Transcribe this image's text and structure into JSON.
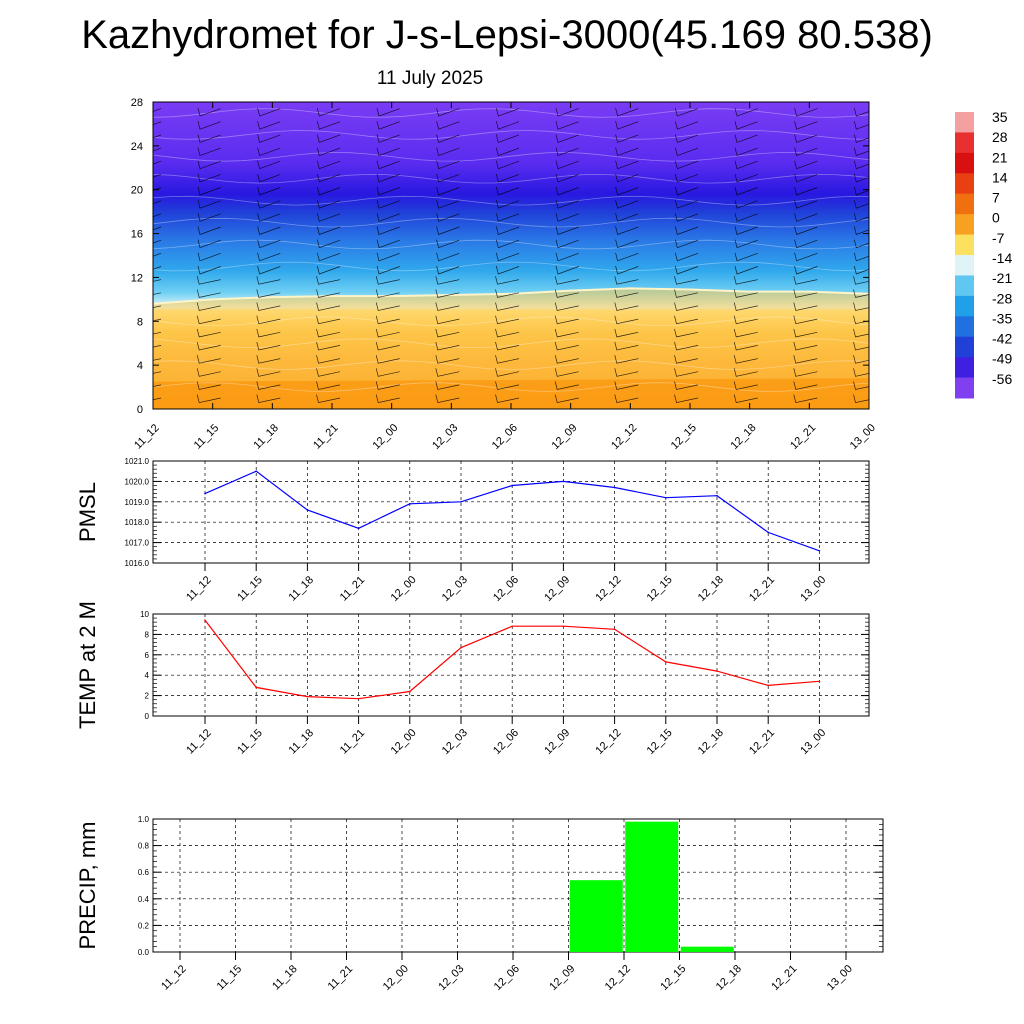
{
  "page": {
    "title": "Kazhydromet for J-s-Lepsi-3000(45.169 80.538)",
    "subtitle": "11 July 2025"
  },
  "chart_data": [
    {
      "type": "heatmap",
      "name": "time-height-section",
      "x_labels": [
        "11_12",
        "11_15",
        "11_18",
        "11_21",
        "12_00",
        "12_03",
        "12_06",
        "12_09",
        "12_12",
        "12_15",
        "12_18",
        "12_21",
        "13_00"
      ],
      "y_ticks": [
        0,
        4,
        8,
        12,
        16,
        20,
        24,
        28
      ],
      "ylim": [
        0,
        28
      ],
      "freezing_level": [
        9.6,
        10.0,
        10.2,
        10.3,
        10.3,
        10.4,
        10.5,
        10.8,
        11.0,
        10.9,
        10.7,
        10.7,
        10.5
      ],
      "wind_barbs": true,
      "grid": false,
      "colorbar": {
        "labels": [
          "35",
          "28",
          "21",
          "14",
          "7",
          "0",
          "-7",
          "-14",
          "-21",
          "-28",
          "-35",
          "-42",
          "-49",
          "-56"
        ],
        "values": [
          35,
          28,
          21,
          14,
          7,
          0,
          -7,
          -14,
          -21,
          -28,
          -35,
          -42,
          -49,
          -56
        ],
        "colors": [
          "#f4a0a0",
          "#e83030",
          "#d81010",
          "#e84010",
          "#f07010",
          "#f8a020",
          "#fce060",
          "#e0f4f8",
          "#60c8f0",
          "#20a0e8",
          "#2070e0",
          "#2040d8",
          "#4020e0",
          "#8040f0"
        ]
      }
    },
    {
      "type": "line",
      "name": "pmsl",
      "ylabel": "PMSL",
      "categories": [
        "11_12",
        "11_15",
        "11_18",
        "11_21",
        "12_00",
        "12_03",
        "12_06",
        "12_09",
        "12_12",
        "12_15",
        "12_18",
        "12_21",
        "13_00"
      ],
      "values": [
        1019.4,
        1020.5,
        1018.6,
        1017.7,
        1018.9,
        1019.0,
        1019.8,
        1020.0,
        1019.7,
        1019.2,
        1019.3,
        1017.5,
        1016.6
      ],
      "y_ticks": [
        "1016.0",
        "1017.0",
        "1018.0",
        "1019.0",
        "1020.0",
        "1021.0"
      ],
      "ylim": [
        1016,
        1021
      ],
      "color": "#0000ff",
      "grid": true
    },
    {
      "type": "line",
      "name": "temp2m",
      "ylabel": "TEMP at 2 M",
      "categories": [
        "11_12",
        "11_15",
        "11_18",
        "11_21",
        "12_00",
        "12_03",
        "12_06",
        "12_09",
        "12_12",
        "12_15",
        "12_18",
        "12_21",
        "13_00"
      ],
      "values": [
        9.4,
        2.8,
        1.9,
        1.7,
        2.4,
        6.7,
        8.8,
        8.8,
        8.5,
        5.3,
        4.4,
        3.0,
        3.4
      ],
      "y_ticks": [
        "0",
        "2",
        "4",
        "6",
        "8",
        "10"
      ],
      "ylim": [
        0,
        10
      ],
      "color": "#ff0000",
      "grid": true
    },
    {
      "type": "bar",
      "name": "precip",
      "ylabel": "PRECIP, mm",
      "categories": [
        "11_12",
        "11_15",
        "11_18",
        "11_21",
        "12_00",
        "12_03",
        "12_06",
        "12_09",
        "12_12",
        "12_15",
        "12_18",
        "12_21",
        "13_00"
      ],
      "values": [
        0,
        0,
        0,
        0,
        0,
        0,
        0,
        0.54,
        0.98,
        0.04,
        0,
        0,
        0
      ],
      "y_ticks": [
        "0.0",
        "0.2",
        "0.4",
        "0.6",
        "0.8",
        "1.0"
      ],
      "ylim": [
        0,
        1.0
      ],
      "color": "#00ff00",
      "grid": true
    }
  ]
}
